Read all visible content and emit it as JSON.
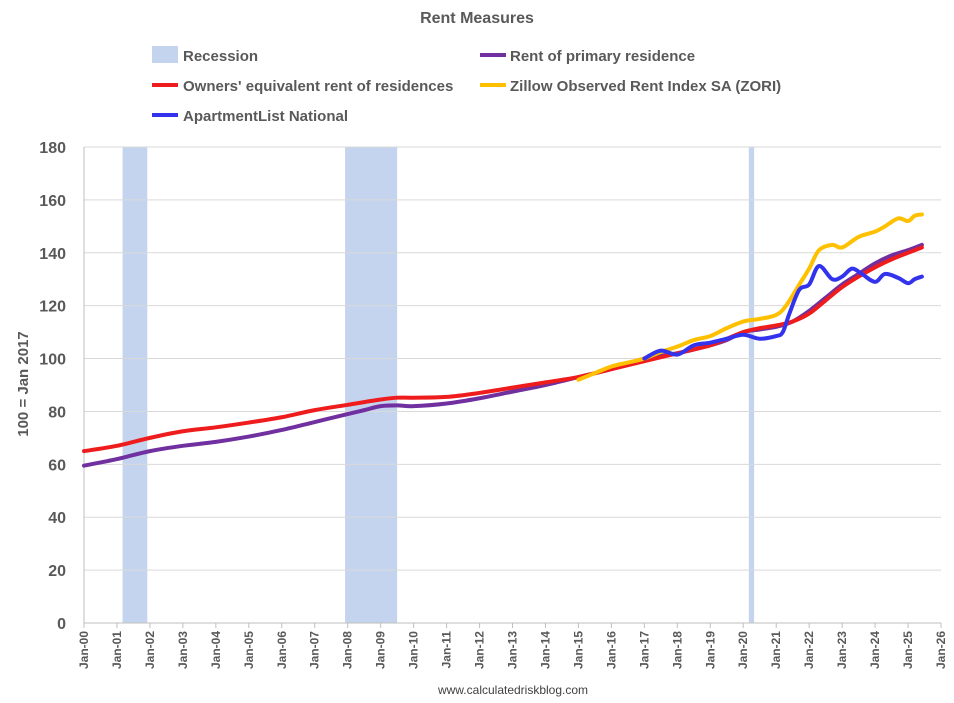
{
  "chart_data": {
    "type": "line",
    "title": "Rent Measures",
    "ylabel": "100 = Jan 2017",
    "xlabel": "",
    "source": "www.calculatedriskblog.com",
    "ylim": [
      0,
      180
    ],
    "yticks": [
      0,
      20,
      40,
      60,
      80,
      100,
      120,
      140,
      160,
      180
    ],
    "xlim": [
      2000,
      2026
    ],
    "xticks": [
      {
        "value": 2000,
        "label": "Jan-00"
      },
      {
        "value": 2001,
        "label": "Jan-01"
      },
      {
        "value": 2002,
        "label": "Jan-02"
      },
      {
        "value": 2003,
        "label": "Jan-03"
      },
      {
        "value": 2004,
        "label": "Jan-04"
      },
      {
        "value": 2005,
        "label": "Jan-05"
      },
      {
        "value": 2006,
        "label": "Jan-06"
      },
      {
        "value": 2007,
        "label": "Jan-07"
      },
      {
        "value": 2008,
        "label": "Jan-08"
      },
      {
        "value": 2009,
        "label": "Jan-09"
      },
      {
        "value": 2010,
        "label": "Jan-10"
      },
      {
        "value": 2011,
        "label": "Jan-11"
      },
      {
        "value": 2012,
        "label": "Jan-12"
      },
      {
        "value": 2013,
        "label": "Jan-13"
      },
      {
        "value": 2014,
        "label": "Jan-14"
      },
      {
        "value": 2015,
        "label": "Jan-15"
      },
      {
        "value": 2016,
        "label": "Jan-16"
      },
      {
        "value": 2017,
        "label": "Jan-17"
      },
      {
        "value": 2018,
        "label": "Jan-18"
      },
      {
        "value": 2019,
        "label": "Jan-19"
      },
      {
        "value": 2020,
        "label": "Jan-20"
      },
      {
        "value": 2021,
        "label": "Jan-21"
      },
      {
        "value": 2022,
        "label": "Jan-22"
      },
      {
        "value": 2023,
        "label": "Jan-23"
      },
      {
        "value": 2024,
        "label": "Jan-24"
      },
      {
        "value": 2025,
        "label": "Jan-25"
      },
      {
        "value": 2026,
        "label": "Jan-26"
      }
    ],
    "grid": {
      "horizontal": true,
      "vertical": false
    },
    "legend_placement": "top",
    "recessions": {
      "name": "Recession",
      "color": "#c5d4ee",
      "periods": [
        [
          2001.17,
          2001.92
        ],
        [
          2007.92,
          2009.5
        ],
        [
          2020.17,
          2020.33
        ]
      ]
    },
    "series": [
      {
        "name": "Rent of primary residence",
        "color": "#7030a0",
        "x": [
          2000,
          2001,
          2002,
          2003,
          2004,
          2005,
          2006,
          2007,
          2008,
          2008.5,
          2009,
          2009.5,
          2010,
          2011,
          2012,
          2013,
          2014,
          2015,
          2016,
          2017,
          2018,
          2019,
          2019.5,
          2020,
          2020.5,
          2021,
          2021.5,
          2022,
          2022.5,
          2023,
          2023.5,
          2024,
          2024.5,
          2025,
          2025.42
        ],
        "values": [
          59.5,
          62,
          65,
          67,
          68.5,
          70.5,
          73,
          76,
          79,
          80.5,
          82,
          82.3,
          82,
          83,
          85,
          87.5,
          90,
          93,
          96,
          100,
          102,
          105,
          107,
          110,
          111,
          112,
          114,
          118,
          123,
          128,
          132,
          136,
          139,
          141,
          143
        ]
      },
      {
        "name": "Owners' equivalent rent of residences",
        "color": "#ee1c1c",
        "x": [
          2000,
          2001,
          2002,
          2003,
          2004,
          2005,
          2006,
          2007,
          2008,
          2009,
          2009.5,
          2010,
          2011,
          2012,
          2013,
          2014,
          2015,
          2016,
          2017,
          2018,
          2019,
          2019.5,
          2020,
          2020.5,
          2021,
          2021.5,
          2022,
          2022.5,
          2023,
          2023.5,
          2024,
          2024.5,
          2025,
          2025.42
        ],
        "values": [
          65,
          67,
          70,
          72.5,
          74,
          75.8,
          77.8,
          80.5,
          82.5,
          84.5,
          85.2,
          85.2,
          85.5,
          87,
          89,
          91,
          93,
          96,
          99,
          102,
          105,
          107.5,
          110,
          111.5,
          112.5,
          114,
          117,
          122,
          127,
          131,
          134.5,
          137.5,
          140,
          142
        ]
      },
      {
        "name": "Zillow Observed Rent Index SA (ZORI)",
        "color": "#ffc000",
        "x": [
          2015,
          2015.5,
          2016,
          2016.5,
          2017,
          2017.5,
          2018,
          2018.5,
          2019,
          2019.5,
          2020,
          2020.5,
          2021,
          2021.3,
          2021.7,
          2022,
          2022.3,
          2022.7,
          2023,
          2023.5,
          2024,
          2024.3,
          2024.7,
          2025,
          2025.2,
          2025.42
        ],
        "values": [
          92,
          94.5,
          97,
          98.5,
          100,
          102.5,
          104.5,
          107,
          108.5,
          111.5,
          114,
          115,
          116.5,
          120,
          128,
          134,
          141,
          143,
          142,
          146,
          148,
          150,
          153,
          152,
          154,
          154.5
        ]
      },
      {
        "name": "ApartmentList National",
        "color": "#3333ee",
        "x": [
          2017,
          2017.5,
          2018,
          2018.5,
          2019,
          2019.5,
          2020,
          2020.5,
          2021,
          2021.2,
          2021.4,
          2021.7,
          2022,
          2022.3,
          2022.7,
          2023,
          2023.3,
          2023.6,
          2024,
          2024.3,
          2024.7,
          2025,
          2025.2,
          2025.42
        ],
        "values": [
          100,
          103,
          101.5,
          105,
          106,
          107.5,
          109,
          107.5,
          108.5,
          110,
          117,
          126,
          128,
          135,
          130,
          131,
          134,
          132,
          129,
          132,
          130.5,
          128.5,
          130,
          131
        ]
      }
    ]
  }
}
